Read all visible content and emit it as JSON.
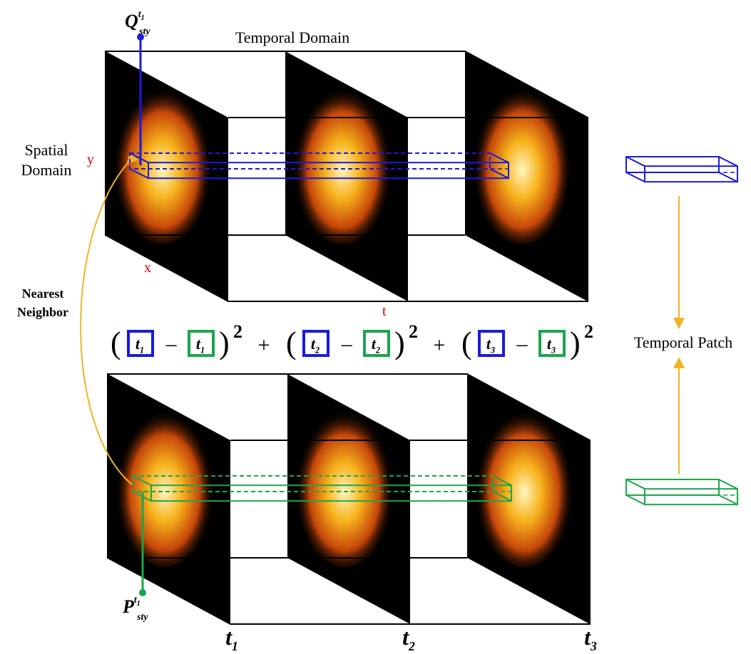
{
  "labels": {
    "temporal_domain": "Temporal Domain",
    "spatial_domain": [
      "Spatial",
      "Domain"
    ],
    "axis_y": "y",
    "axis_x": "x",
    "axis_t": "t",
    "nearest_neighbor": [
      "Nearest",
      "Neighbor"
    ],
    "temporal_patch": "Temporal Patch"
  },
  "query": {
    "base": "Q",
    "sub": "sty",
    "sup": "t",
    "sup_sub": "1"
  },
  "match": {
    "base": "P",
    "sub": "sty",
    "sup": "t",
    "sup_sub": "1"
  },
  "time_steps": [
    {
      "base": "t",
      "sub": "1"
    },
    {
      "base": "t",
      "sub": "2"
    },
    {
      "base": "t",
      "sub": "3"
    }
  ],
  "formula": {
    "open": "(",
    "close": ")",
    "minus": "–",
    "plus": "+",
    "exponent": "2"
  }
}
